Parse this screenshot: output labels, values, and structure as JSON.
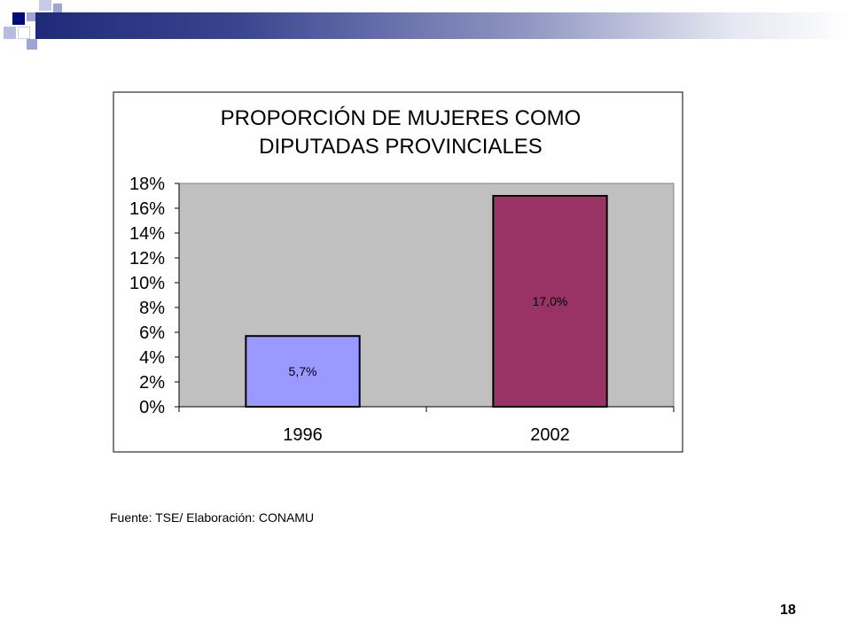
{
  "slide": {
    "source": "Fuente: TSE/ Elaboración: CONAMU",
    "page_number": "18"
  },
  "chart_data": {
    "type": "bar",
    "title_lines": [
      "PROPORCIÓN DE MUJERES COMO",
      "DIPUTADAS PROVINCIALES"
    ],
    "categories": [
      "1996",
      "2002"
    ],
    "values": [
      5.7,
      17.0
    ],
    "data_labels": [
      "5,7%",
      "17,0%"
    ],
    "bar_colors": [
      "#9999ff",
      "#993366"
    ],
    "plot_background": "#c0c0c0",
    "ylim": [
      0,
      18
    ],
    "yticks": [
      0,
      2,
      4,
      6,
      8,
      10,
      12,
      14,
      16,
      18
    ],
    "ytick_labels": [
      "0%",
      "2%",
      "4%",
      "6%",
      "8%",
      "10%",
      "12%",
      "14%",
      "16%",
      "18%"
    ],
    "xlabel": "",
    "ylabel": "",
    "grid": false,
    "legend": "none"
  }
}
